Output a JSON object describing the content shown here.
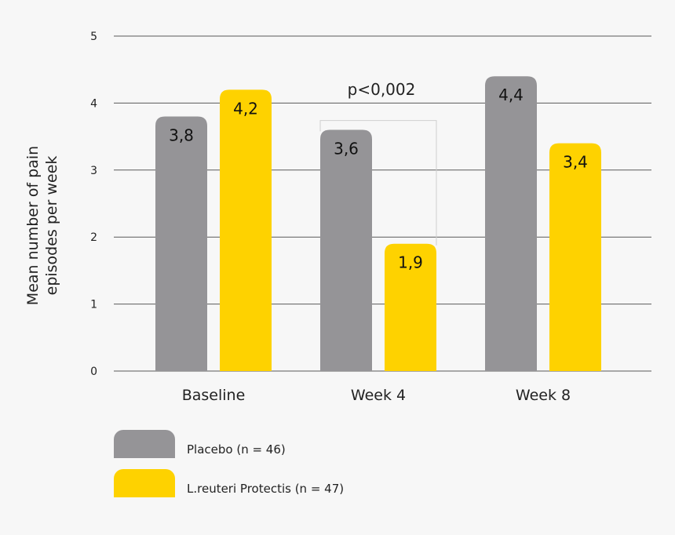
{
  "chart_data": {
    "type": "bar",
    "title": "",
    "xlabel": "",
    "ylabel": "Mean number of pain episodes per week",
    "ylabel_lines": [
      "Mean number of pain",
      "episodes per week"
    ],
    "ylim": [
      0,
      5
    ],
    "yticks": [
      "0",
      "1",
      "2",
      "3",
      "4",
      "5"
    ],
    "grid": true,
    "legend_position": "bottom-left",
    "categories": [
      "Baseline",
      "Week 4",
      "Week 8"
    ],
    "series": [
      {
        "name": "Placebo (n = 46)",
        "color": "#959497",
        "values": [
          3.8,
          3.6,
          4.4
        ],
        "labels": [
          "3,8",
          "3,6",
          "4,4"
        ]
      },
      {
        "name": "L.reuteri Protectis (n = 47)",
        "color": "#fed200",
        "values": [
          4.2,
          1.9,
          3.4
        ],
        "labels": [
          "4,2",
          "1,9",
          "3,4"
        ]
      }
    ],
    "annotations": [
      {
        "text": "p<0,002",
        "category": "Week 4"
      }
    ]
  }
}
